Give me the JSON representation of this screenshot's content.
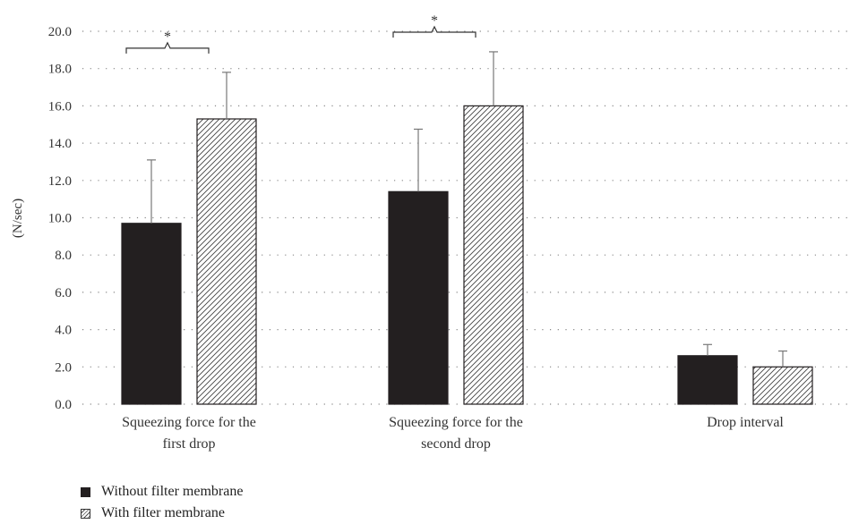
{
  "chart_data": {
    "type": "bar",
    "title": "",
    "xlabel": "",
    "ylabel": "(N/sec)",
    "ylim": [
      0,
      20
    ],
    "yticks": [
      "0.0",
      "2.0",
      "4.0",
      "6.0",
      "8.0",
      "10.0",
      "12.0",
      "14.0",
      "16.0",
      "18.0",
      "20.0"
    ],
    "grid": true,
    "legend_position": "bottom-left",
    "categories": [
      [
        "Squeezing force for the",
        "first drop"
      ],
      [
        "Squeezing force for the",
        "second drop"
      ],
      [
        "Drop interval"
      ]
    ],
    "series": [
      {
        "name": "Without filter membrane",
        "values": [
          9.7,
          11.4,
          2.6
        ],
        "errors": [
          3.4,
          3.35,
          0.6
        ],
        "color": "#231f20",
        "pattern": "solid"
      },
      {
        "name": "With filter membrane",
        "values": [
          15.3,
          16.0,
          2.0
        ],
        "errors": [
          2.5,
          2.9,
          0.85
        ],
        "color": "#ffffff",
        "pattern": "hatched"
      }
    ],
    "significance": [
      {
        "category_index": 0,
        "label": "*"
      },
      {
        "category_index": 1,
        "label": "*"
      }
    ]
  }
}
